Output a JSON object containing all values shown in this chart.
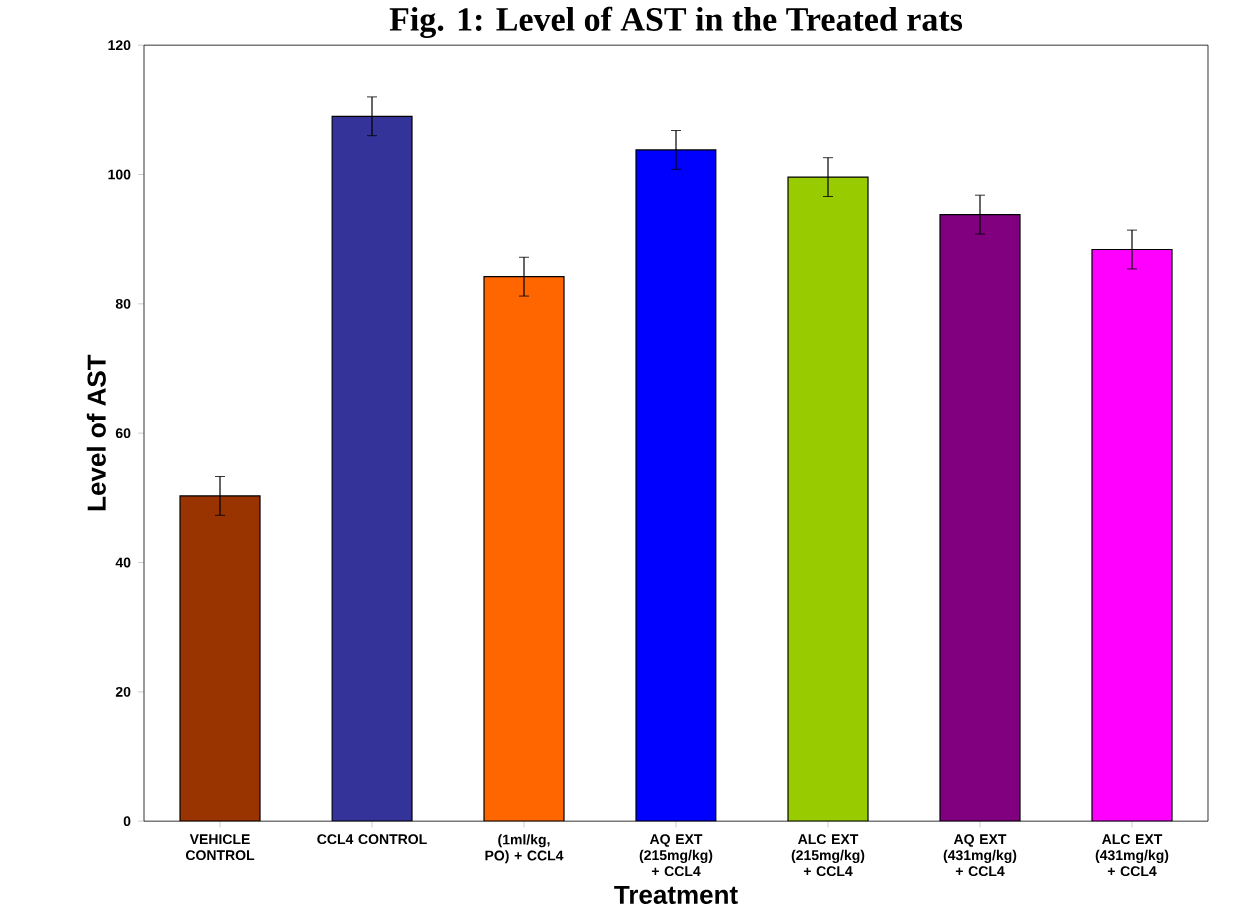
{
  "chart_data": {
    "type": "bar",
    "title": "Fig. 1: Level of AST in the Treated rats",
    "xlabel": "Treatment",
    "ylabel": "Level of AST",
    "categories": [
      "VEHICLE CONTROL",
      "CCL4 CONTROL",
      "(1ml/kg, PO) + CCL4",
      "AQ EXT (215mg/kg) + CCL4",
      "ALC EXT (215mg/kg) + CCL4",
      "AQ EXT (431mg/kg) + CCL4",
      "ALC EXT (431mg/kg) + CCL4"
    ],
    "values": [
      50.3,
      109,
      84.2,
      103.8,
      99.6,
      93.8,
      88.4
    ],
    "errors": [
      3,
      3,
      3,
      3,
      3,
      3,
      3
    ],
    "colors": [
      "#993300",
      "#333399",
      "#ff6600",
      "#0000ff",
      "#99cc00",
      "#800080",
      "#ff00ff"
    ],
    "ylim": [
      0,
      120
    ],
    "yticks": [
      0,
      20,
      40,
      60,
      80,
      100,
      120
    ]
  }
}
